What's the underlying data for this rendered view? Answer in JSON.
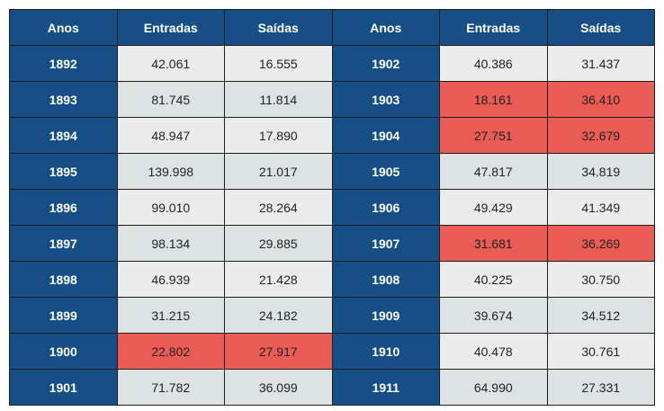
{
  "table": {
    "headers": [
      "Anos",
      "Entradas",
      "Saídas",
      "Anos",
      "Entradas",
      "Saídas"
    ],
    "highlight_color": "#eb5c56",
    "header_color": "#154f86",
    "rows": [
      {
        "left": {
          "year": "1892",
          "entradas": "42.061",
          "saidas": "16.555",
          "highlighted": false
        },
        "right": {
          "year": "1902",
          "entradas": "40.386",
          "saidas": "31.437",
          "highlighted": false
        }
      },
      {
        "left": {
          "year": "1893",
          "entradas": "81.745",
          "saidas": "11.814",
          "highlighted": false
        },
        "right": {
          "year": "1903",
          "entradas": "18.161",
          "saidas": "36.410",
          "highlighted": true
        }
      },
      {
        "left": {
          "year": "1894",
          "entradas": "48.947",
          "saidas": "17.890",
          "highlighted": false
        },
        "right": {
          "year": "1904",
          "entradas": "27.751",
          "saidas": "32.679",
          "highlighted": true
        }
      },
      {
        "left": {
          "year": "1895",
          "entradas": "139.998",
          "saidas": "21.017",
          "highlighted": false
        },
        "right": {
          "year": "1905",
          "entradas": "47.817",
          "saidas": "34.819",
          "highlighted": false
        }
      },
      {
        "left": {
          "year": "1896",
          "entradas": "99.010",
          "saidas": "28.264",
          "highlighted": false
        },
        "right": {
          "year": "1906",
          "entradas": "49.429",
          "saidas": "41.349",
          "highlighted": false
        }
      },
      {
        "left": {
          "year": "1897",
          "entradas": "98.134",
          "saidas": "29.885",
          "highlighted": false
        },
        "right": {
          "year": "1907",
          "entradas": "31.681",
          "saidas": "36.269",
          "highlighted": true
        }
      },
      {
        "left": {
          "year": "1898",
          "entradas": "46.939",
          "saidas": "21.428",
          "highlighted": false
        },
        "right": {
          "year": "1908",
          "entradas": "40.225",
          "saidas": "30.750",
          "highlighted": false
        }
      },
      {
        "left": {
          "year": "1899",
          "entradas": "31.215",
          "saidas": "24.182",
          "highlighted": false
        },
        "right": {
          "year": "1909",
          "entradas": "39.674",
          "saidas": "34.512",
          "highlighted": false
        }
      },
      {
        "left": {
          "year": "1900",
          "entradas": "22.802",
          "saidas": "27.917",
          "highlighted": true
        },
        "right": {
          "year": "1910",
          "entradas": "40.478",
          "saidas": "30.761",
          "highlighted": false
        }
      },
      {
        "left": {
          "year": "1901",
          "entradas": "71.782",
          "saidas": "36.099",
          "highlighted": false
        },
        "right": {
          "year": "1911",
          "entradas": "64.990",
          "saidas": "27.331",
          "highlighted": false
        }
      }
    ]
  }
}
